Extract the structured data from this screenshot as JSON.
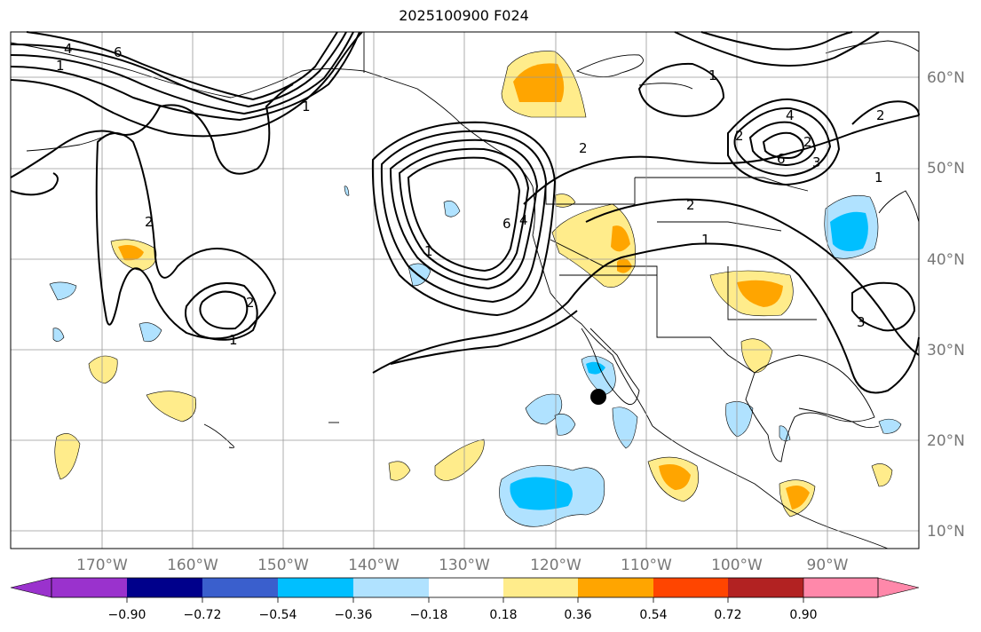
{
  "title": "2025100900 F024",
  "lat_labels": [
    "60°N",
    "50°N",
    "40°N",
    "30°N",
    "20°N",
    "10°N"
  ],
  "lon_labels": [
    "170°W",
    "160°W",
    "150°W",
    "140°W",
    "130°W",
    "120°W",
    "110°W",
    "100°W",
    "90°W"
  ],
  "colorbar": {
    "ticks": [
      "−0.90",
      "−0.72",
      "−0.54",
      "−0.36",
      "−0.18",
      "0.18",
      "0.36",
      "0.54",
      "0.72",
      "0.90"
    ],
    "colors": [
      "#9a32cd",
      "#00008b",
      "#3a5fcd",
      "#00bfff",
      "#b0e2ff",
      "#ffffff",
      "#ffec8b",
      "#ffa500",
      "#ff4500",
      "#b22222",
      "#ff88aa"
    ]
  },
  "contour_labels": [
    "1",
    "4",
    "6",
    "1",
    "2",
    "1",
    "2",
    "1",
    "2",
    "6",
    "4",
    "2",
    "1",
    "4",
    "6",
    "2",
    "3",
    "2",
    "1",
    "1",
    "2",
    "3"
  ]
}
